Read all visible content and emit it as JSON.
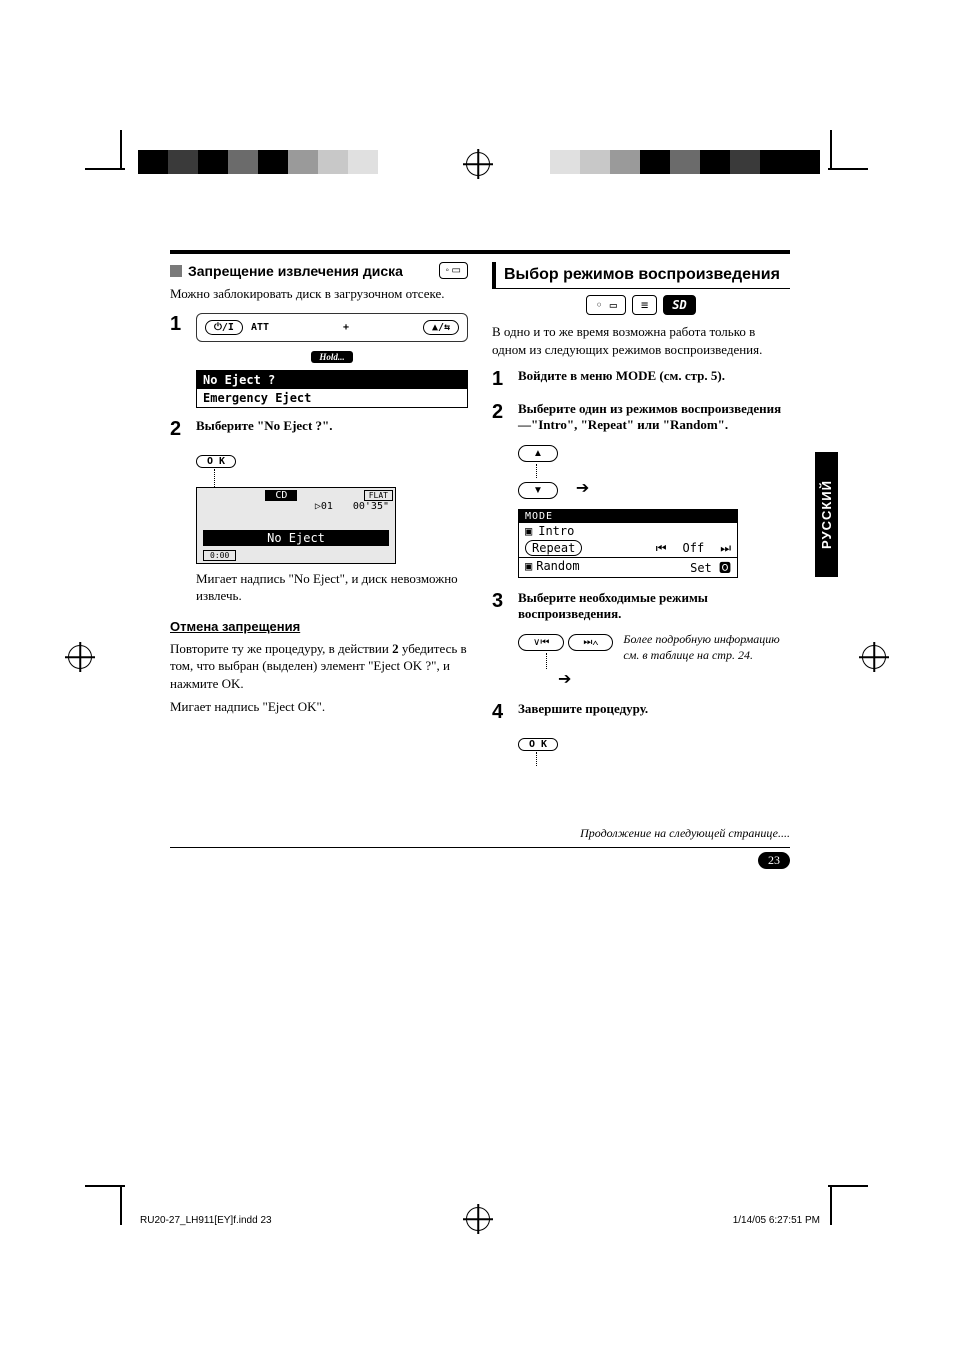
{
  "color_bars": {
    "left": [
      "#000000",
      "#3a3a3a",
      "#000000",
      "#6b6b6b",
      "#000000",
      "#9a9a9a",
      "#c8c8c8",
      "#e0e0e0",
      "#ffffff",
      "#ffffff"
    ],
    "right": [
      "#ffffff",
      "#e0e0e0",
      "#c8c8c8",
      "#9a9a9a",
      "#000000",
      "#6b6b6b",
      "#000000",
      "#3a3a3a",
      "#000000",
      "#000000"
    ]
  },
  "left_col": {
    "section_title": "Запрещение извлечения диска",
    "intro": "Можно заблокировать диск в загрузочном отсеке.",
    "device": {
      "att": "ATT",
      "plus": "+",
      "hold": "Hold...",
      "power_icon": "⏻/I",
      "eject_icon": "▲/⇆"
    },
    "menu": {
      "row1": "No Eject ?",
      "row2": "Emergency Eject"
    },
    "step2_title": "Выберите \"No Eject ?\".",
    "ok_label": "O K",
    "lcd": {
      "cd": "CD",
      "flat": "FLAT",
      "track": "▷01",
      "time": "00'35\"",
      "main": "No Eject",
      "vol": "0:00"
    },
    "after": "Мигает надпись \"No Eject\", и диск невозможно извлечь.",
    "cancel_head": "Отмена запрещения",
    "cancel_body_1": "Повторите ту же процедуру, в действии ",
    "cancel_body_bold": "2",
    "cancel_body_2": " убедитесь в том, что выбран (выделен) элемент \"Eject OK ?\", и нажмите OK.",
    "cancel_body_3": "Мигает надпись \"Eject OK\"."
  },
  "right_col": {
    "section_title": "Выбор режимов воспроизведения",
    "strip": {
      "disc": "◦ ▭",
      "list": "≡",
      "sd": "SD"
    },
    "intro": "В одно и то же время возможна работа только в одном из следующих режимов воспроизведения.",
    "step1": "Войдите в меню MODE (см. стр. 5).",
    "step2": "Выберите один из режимов воспроизведения—\"Intro\", \"Repeat\" или \"Random\".",
    "arrow_up": "▲",
    "arrow_down": "▼",
    "mode_panel": {
      "head": "MODE",
      "r1_icon": "▣",
      "r1": "Intro",
      "r2": "Repeat",
      "r2_mid_l": "⏮",
      "r2_mid": "Off",
      "r2_mid_r": "⏭",
      "r3_icon": "▣",
      "r3": "Random",
      "r3_right": "Set 🅾"
    },
    "step3": "Выберите необходимые режимы воспроизведения.",
    "nav_prev": "∨⏮",
    "nav_next": "⏭∧",
    "note": "Более подробную информацию см. в таблице на стр. 24.",
    "step4": "Завершите процедуру.",
    "ok_label": "O K"
  },
  "side_tab": "РУССКИЙ",
  "cont": "Продолжение на следующей странице....",
  "page_number": "23",
  "footer": {
    "left": "RU20-27_LH911[EY]f.indd   23",
    "right": "1/14/05   6:27:51 PM"
  }
}
